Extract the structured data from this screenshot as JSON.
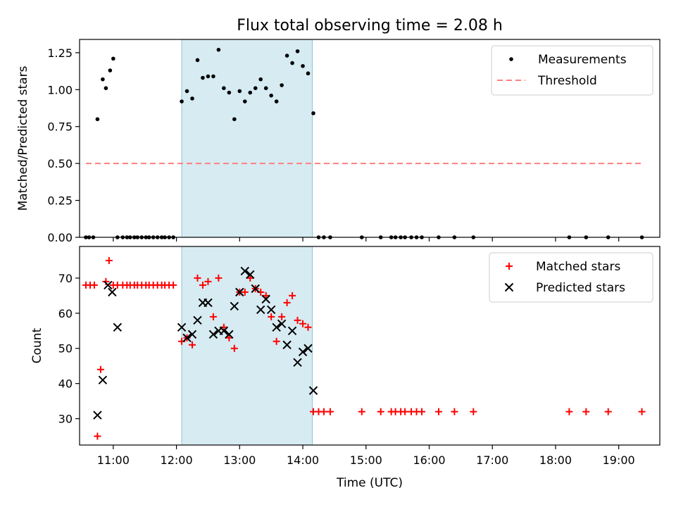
{
  "title": "Flux total observing time = 2.08 h",
  "colors": {
    "measurement": "#000000",
    "threshold": "#ff7f7f",
    "matched": "#ff0000",
    "predicted": "#000000",
    "highlight": "#add8e6"
  },
  "chart_data": [
    {
      "type": "scatter",
      "panel": "top",
      "title": "Flux total observing time = 2.08 h",
      "xlabel": "",
      "ylabel": "Matched/Predicted stars",
      "xlim": [
        "10:28",
        "19:39"
      ],
      "ylim": [
        0,
        1.34
      ],
      "yticks": [
        "0.00",
        "0.25",
        "0.50",
        "0.75",
        "1.00",
        "1.25"
      ],
      "grid": false,
      "legend_position": "top-right",
      "highlight_span": [
        "12:05",
        "14:09"
      ],
      "series": [
        {
          "name": "Measurements",
          "marker": "dot",
          "x": [
            "10:34",
            "10:37",
            "10:41",
            "10:45",
            "10:50",
            "10:53",
            "10:57",
            "11:00",
            "11:04",
            "11:09",
            "11:13",
            "11:16",
            "11:20",
            "11:23",
            "11:27",
            "11:31",
            "11:34",
            "11:38",
            "11:42",
            "11:46",
            "11:49",
            "11:53",
            "11:57",
            "12:05",
            "12:10",
            "12:15",
            "12:20",
            "12:25",
            "12:30",
            "12:35",
            "12:40",
            "12:45",
            "12:50",
            "12:55",
            "13:00",
            "13:05",
            "13:10",
            "13:15",
            "13:20",
            "13:25",
            "13:30",
            "13:35",
            "13:40",
            "13:45",
            "13:50",
            "13:55",
            "14:00",
            "14:05",
            "14:10",
            "14:15",
            "14:20",
            "14:26",
            "14:56",
            "15:14",
            "15:24",
            "15:28",
            "15:33",
            "15:37",
            "15:43",
            "15:48",
            "15:53",
            "16:09",
            "16:24",
            "16:42",
            "18:13",
            "18:29",
            "18:50",
            "19:22"
          ],
          "y": [
            0,
            0,
            0,
            0.8,
            1.07,
            1.01,
            1.13,
            1.21,
            0,
            0,
            0,
            0,
            0,
            0,
            0,
            0,
            0,
            0,
            0,
            0,
            0,
            0,
            0,
            0.92,
            0.99,
            0.94,
            1.2,
            1.08,
            1.09,
            1.09,
            1.27,
            1.01,
            0.98,
            0.8,
            0.99,
            0.92,
            0.98,
            1.01,
            1.07,
            1.01,
            0.96,
            0.92,
            1.03,
            1.23,
            1.18,
            1.26,
            1.16,
            1.11,
            0.84,
            0,
            0,
            0,
            0,
            0,
            0,
            0,
            0,
            0,
            0,
            0,
            0,
            0,
            0,
            0,
            0,
            0,
            0,
            0
          ]
        },
        {
          "name": "Threshold",
          "style": "dashed",
          "x": [
            "10:34",
            "19:22"
          ],
          "y": [
            0.5,
            0.5
          ]
        }
      ]
    },
    {
      "type": "scatter",
      "panel": "bottom",
      "xlabel": "Time (UTC)",
      "ylabel": "Count",
      "xlim": [
        "10:28",
        "19:39"
      ],
      "ylim": [
        22.5,
        79
      ],
      "xticks": [
        "11:00",
        "12:00",
        "13:00",
        "14:00",
        "15:00",
        "16:00",
        "17:00",
        "18:00",
        "19:00"
      ],
      "yticks": [
        "30",
        "40",
        "50",
        "60",
        "70"
      ],
      "grid": false,
      "legend_position": "top-right",
      "highlight_span": [
        "12:05",
        "14:09"
      ],
      "series": [
        {
          "name": "Matched stars",
          "marker": "plus",
          "x": [
            "10:34",
            "10:38",
            "10:42",
            "10:45",
            "10:48",
            "10:53",
            "10:56",
            "11:00",
            "11:04",
            "11:09",
            "11:13",
            "11:16",
            "11:20",
            "11:23",
            "11:27",
            "11:31",
            "11:34",
            "11:38",
            "11:42",
            "11:46",
            "11:49",
            "11:53",
            "11:57",
            "12:05",
            "12:10",
            "12:15",
            "12:20",
            "12:25",
            "12:30",
            "12:35",
            "12:40",
            "12:45",
            "12:50",
            "12:55",
            "13:00",
            "13:05",
            "13:10",
            "13:15",
            "13:20",
            "13:25",
            "13:30",
            "13:35",
            "13:40",
            "13:45",
            "13:50",
            "13:55",
            "14:00",
            "14:05",
            "14:10",
            "14:15",
            "14:20",
            "14:26",
            "14:56",
            "15:14",
            "15:24",
            "15:28",
            "15:33",
            "15:37",
            "15:43",
            "15:48",
            "15:53",
            "16:09",
            "16:24",
            "16:42",
            "18:13",
            "18:29",
            "18:50",
            "19:22"
          ],
          "y": [
            68,
            68,
            68,
            25,
            44,
            69,
            75,
            68,
            68,
            68,
            68,
            68,
            68,
            68,
            68,
            68,
            68,
            68,
            68,
            68,
            68,
            68,
            68,
            52,
            53,
            51,
            70,
            68,
            69,
            59,
            70,
            56,
            53,
            50,
            66,
            66,
            70,
            67,
            66,
            65,
            59,
            52,
            59,
            63,
            65,
            58,
            57,
            56,
            32,
            32,
            32,
            32,
            32,
            32,
            32,
            32,
            32,
            32,
            32,
            32,
            32,
            32,
            32,
            32,
            32,
            32,
            32,
            32
          ]
        },
        {
          "name": "Predicted stars",
          "marker": "x",
          "x": [
            "10:45",
            "10:50",
            "10:55",
            "10:59",
            "11:04",
            "12:05",
            "12:10",
            "12:15",
            "12:20",
            "12:25",
            "12:30",
            "12:35",
            "12:40",
            "12:45",
            "12:50",
            "12:55",
            "13:00",
            "13:05",
            "13:10",
            "13:15",
            "13:20",
            "13:25",
            "13:30",
            "13:35",
            "13:40",
            "13:45",
            "13:50",
            "13:55",
            "14:00",
            "14:05",
            "14:10"
          ],
          "y": [
            31,
            41,
            68,
            66,
            56,
            56,
            53,
            54,
            58,
            63,
            63,
            54,
            55,
            55,
            54,
            62,
            66,
            72,
            71,
            67,
            61,
            64,
            61,
            56,
            57,
            51,
            55,
            46,
            49,
            50,
            38
          ]
        }
      ]
    }
  ]
}
